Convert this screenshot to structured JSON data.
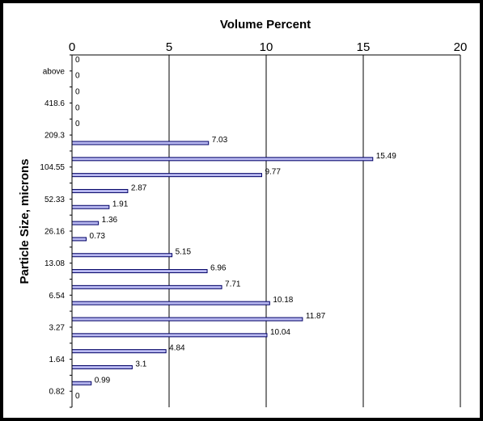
{
  "chart_data": {
    "type": "bar",
    "orientation": "horizontal",
    "title": "Volume Percent",
    "xlabel": "Volume Percent",
    "ylabel": "Particle Size, microns",
    "xlim": [
      0,
      20
    ],
    "xticks": [
      "0",
      "5",
      "10",
      "15",
      "20"
    ],
    "category_labels": [
      "above",
      "418.6",
      "209.3",
      "104.55",
      "52.33",
      "26.16",
      "13.08",
      "6.54",
      "3.27",
      "1.64",
      "0.82"
    ],
    "values": [
      0,
      0,
      0,
      0,
      0,
      7.03,
      15.49,
      9.77,
      2.87,
      1.91,
      1.36,
      0.73,
      5.15,
      6.96,
      7.71,
      10.18,
      11.87,
      10.04,
      4.84,
      3.1,
      0.99,
      0
    ],
    "value_labels": [
      "0",
      "0",
      "0",
      "0",
      "0",
      "7.03",
      "15.49",
      "9.77",
      "2.87",
      "1.91",
      "1.36",
      "0.73",
      "5.15",
      "6.96",
      "7.71",
      "10.18",
      "11.87",
      "10.04",
      "4.84",
      "3.1",
      "0.99",
      "0"
    ],
    "grid": true,
    "colors": {
      "bar_fill": "#b8b8f0",
      "bar_stroke": "#000066",
      "frame": "#000000",
      "background": "#ffffff"
    }
  }
}
